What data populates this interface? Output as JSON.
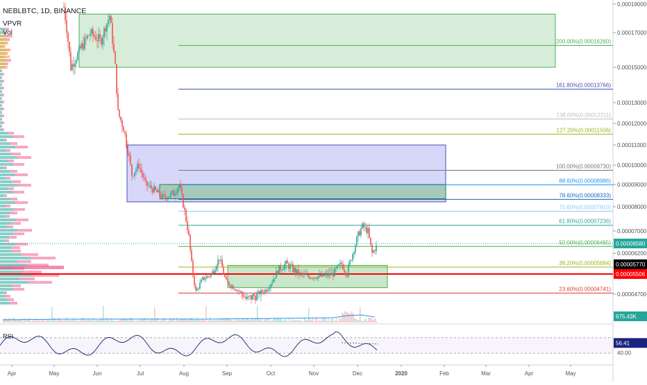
{
  "header": {
    "title": "NEBLBTC, 1D, BINANCE",
    "indicator_vpvr": "VPVR",
    "indicator_vol": "Vol"
  },
  "rsi": {
    "label": "RSI",
    "value_badge": "56.41",
    "level_label": "40.00"
  },
  "volume": {
    "value_badge": "675.43K"
  },
  "price_badges": {
    "last": "0.00006580",
    "black": "0.00005770",
    "red": "0.00005506"
  },
  "colors": {
    "green": "#26a69a",
    "red": "#ef5350",
    "badge_green": "#26a69a",
    "badge_black": "#000000",
    "badge_red": "#ff0000",
    "rsi_line": "#0b1e6b",
    "volume_avg": "#2196f3"
  },
  "chart_data": {
    "type": "candlestick",
    "symbol": "NEBLBTC",
    "interval": "1D",
    "exchange": "BINANCE",
    "ylim": [
      4.3e-05,
      0.000192
    ],
    "y_ticks": [
      "0.00019000",
      "0.00017000",
      "0.00015000",
      "0.00013000",
      "0.00012000",
      "0.00011000",
      "0.00010000",
      "0.00009000",
      "0.00008000",
      "0.00007000",
      "0.00006200",
      "0.00004700"
    ],
    "x_ticks": [
      "Apr",
      "May",
      "Jun",
      "Jul",
      "Aug",
      "Sep",
      "Oct",
      "Nov",
      "Dec",
      "2020",
      "Feb",
      "Mar",
      "Apr",
      "May"
    ],
    "price_path": [
      [
        "Apr",
        0.00019
      ],
      [
        "May",
        0.00015
      ],
      [
        "Jun",
        0.000165
      ],
      [
        "Jul",
        9.5e-05
      ],
      [
        "Aug",
        8.8e-05
      ],
      [
        "Sep",
        5.2e-05
      ],
      [
        "Oct",
        5.6e-05
      ],
      [
        "Nov",
        5.5e-05
      ],
      [
        "Dec",
        7e-05
      ],
      [
        "Dec",
        6.6e-05
      ]
    ],
    "fib_levels": [
      {
        "label": "200.00%(0.00016260)",
        "price": 0.0001626,
        "color": "#4caf50"
      },
      {
        "label": "161.80%(0.00013766)",
        "price": 0.00013766,
        "color": "#3f51b5"
      },
      {
        "label": "138.00%(0.00012211)",
        "price": 0.00012211,
        "color": "#bdbdbd"
      },
      {
        "label": "127.20%(0.00011506)",
        "price": 0.00011506,
        "color": "#9ab51d"
      },
      {
        "label": "100.00%(0.00009730)",
        "price": 9.73e-05,
        "color": "#757575"
      },
      {
        "label": "88.60%(0.00008986)",
        "price": 8.986e-05,
        "color": "#2196f3"
      },
      {
        "label": "78.60%(0.00008333)",
        "price": 8.333e-05,
        "color": "#1565c0"
      },
      {
        "label": "70.60%(0.00007810)",
        "price": 7.81e-05,
        "color": "#90caf9"
      },
      {
        "label": "61.80%(0.00007236)",
        "price": 7.236e-05,
        "color": "#26a69a"
      },
      {
        "label": "50.00%(0.00006465)",
        "price": 6.465e-05,
        "color": "#4caf50"
      },
      {
        "label": "38.20%(0.00005694)",
        "price": 5.694e-05,
        "color": "#9ab51d"
      },
      {
        "label": "23.60%(0.00004741)",
        "price": 4.741e-05,
        "color": "#e53935"
      }
    ],
    "rsi_value": 56.41,
    "rsi_level": 40.0,
    "volume_last": "675.43K"
  }
}
